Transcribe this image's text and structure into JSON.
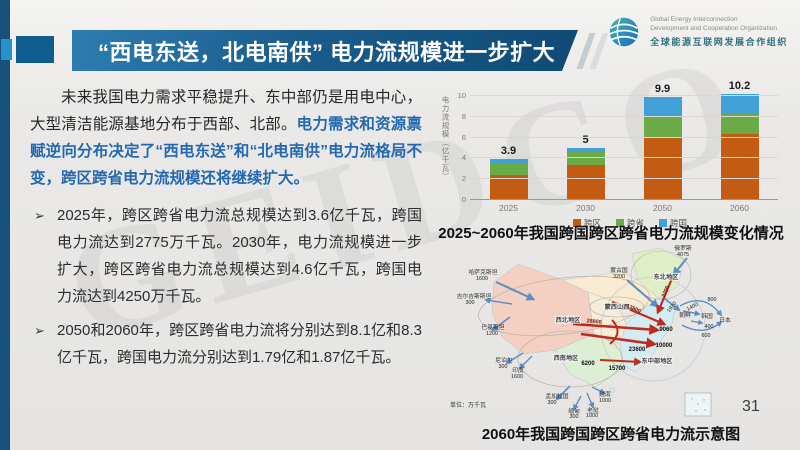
{
  "watermark": "GEIDCO",
  "page_number": "31",
  "header": {
    "title": "“西电东送，北电南供” 电力流规模进一步扩大",
    "logo": {
      "line1": "Global Energy Interconnection",
      "line2": "Development and Cooperation Organization",
      "line3": "全球能源互联网发展合作组织"
    }
  },
  "body": {
    "intro_plain": "未来我国电力需求平稳提升、东中部仍是用电中心，大型清洁能源基地分布于西部、北部。",
    "intro_highlight": "电力需求和资源禀赋逆向分布决定了“西电东送”和“北电南供”电力流格局不变，跨区跨省电力流规模还将继续扩大。",
    "bullet_marker": "➢",
    "bullets": [
      "2025年，跨区跨省电力流总规模达到3.6亿千瓦，跨国电力流达到2775万千瓦。2030年，电力流规模进一步扩大，跨区跨省电力流总规模达到4.6亿千瓦，跨国电力流达到4250万千瓦。",
      "2050和2060年，跨区跨省电力流将分别达到8.1亿和8.3亿千瓦，跨国电力流分别达到1.79亿和1.87亿千瓦。"
    ]
  },
  "chart_data": {
    "type": "bar",
    "stacked": true,
    "title": "2025~2060年我国跨国跨区跨省电力流规模变化情况",
    "ylabel": "电力流规模（亿千瓦）",
    "categories": [
      "2025",
      "2030",
      "2050",
      "2060"
    ],
    "series": [
      {
        "name": "跨区",
        "color": "#c45b13",
        "values": [
          2.4,
          3.4,
          6.1,
          6.3
        ]
      },
      {
        "name": "跨省",
        "color": "#6aab47",
        "values": [
          1.2,
          1.2,
          2.0,
          2.0
        ]
      },
      {
        "name": "跨国",
        "color": "#41a0d8",
        "values": [
          0.3,
          0.4,
          1.8,
          1.9
        ]
      }
    ],
    "totals": [
      "3.9",
      "5",
      "9.9",
      "10.2"
    ],
    "ylim": [
      0,
      10
    ],
    "yticks": [
      0,
      2,
      4,
      6,
      8,
      10
    ],
    "grid": true,
    "legend_position": "bottom"
  },
  "map": {
    "title": "2060年我国跨国跨区跨省电力流示意图",
    "unit": "单位：万千瓦",
    "region_labels": [
      "东北地区",
      "蒙西山西",
      "西北地区",
      "西南地区",
      "东中部地区"
    ],
    "countries": [
      {
        "name": "俄罗斯",
        "value": "4075"
      },
      {
        "name": "蒙古国",
        "value": "3200"
      },
      {
        "name": "哈萨克斯坦",
        "value": "1600"
      },
      {
        "name": "吉尔吉斯斯坦",
        "value": "300"
      },
      {
        "name": "巴基斯坦",
        "value": "1200"
      },
      {
        "name": "尼泊尔",
        "value": "300"
      },
      {
        "name": "印度",
        "value": "1600"
      },
      {
        "name": "孟加拉国",
        "value": "300"
      },
      {
        "name": "缅甸",
        "value": "300"
      },
      {
        "name": "老挝",
        "value": "1000"
      },
      {
        "name": "越南",
        "value": "1000"
      },
      {
        "name": "朝鲜",
        "value": "1920"
      },
      {
        "name": "韩国",
        "value": "1400"
      },
      {
        "name": "日本",
        "value": "800"
      }
    ],
    "extra_flow_values": [
      "400",
      "600"
    ],
    "domestic_values": [
      "2700",
      "13800",
      "28800",
      "23600",
      "10000",
      "9060",
      "15700",
      "6200"
    ]
  }
}
